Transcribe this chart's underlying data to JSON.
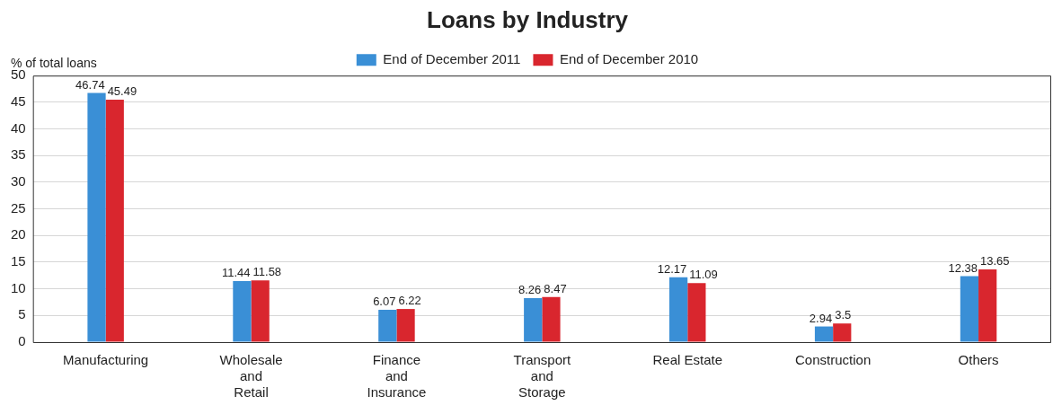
{
  "chart_data": {
    "type": "bar",
    "title": "Loans by Industry",
    "ylabel": "% of total loans",
    "categories": [
      "Manufacturing",
      "Wholesale and Retail",
      "Finance and Insurance",
      "Transport and Storage",
      "Real Estate",
      "Construction",
      "Others"
    ],
    "series": [
      {
        "name": "End of December 2011",
        "color": "#3a8fd6",
        "values": [
          46.74,
          11.44,
          6.07,
          8.26,
          12.17,
          2.94,
          12.38
        ]
      },
      {
        "name": "End of December 2010",
        "color": "#d9262e",
        "values": [
          45.49,
          11.58,
          6.22,
          8.47,
          11.09,
          3.5,
          13.65
        ]
      }
    ],
    "ylim": [
      0,
      50
    ],
    "yticks": [
      0,
      5,
      10,
      15,
      20,
      25,
      30,
      35,
      40,
      45,
      50
    ],
    "grid": "y",
    "legend": "top",
    "data_labels": true
  }
}
